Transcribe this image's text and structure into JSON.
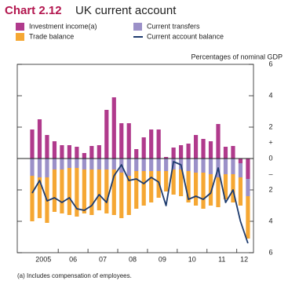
{
  "chart_data": {
    "type": "bar",
    "title_prefix": "Chart 2.12",
    "title": "UK current account",
    "unit_label": "Percentages of nominal GDP",
    "footnote": "(a) Includes compensation of employees.",
    "categories": [
      "2005",
      null,
      null,
      null,
      "06",
      null,
      null,
      null,
      "07",
      null,
      null,
      null,
      "08",
      null,
      null,
      null,
      "09",
      null,
      null,
      null,
      "10",
      null,
      null,
      null,
      "11",
      null,
      null,
      null,
      "12",
      null
    ],
    "series": [
      {
        "name": "Investment income(a)",
        "color": "#b03a8c",
        "kind": "bar",
        "values": [
          1.85,
          2.5,
          1.5,
          1.1,
          0.85,
          0.85,
          0.75,
          0.35,
          0.8,
          0.85,
          3.1,
          3.9,
          2.25,
          2.25,
          0.6,
          1.35,
          1.85,
          1.85,
          0.1,
          0.7,
          0.85,
          0.95,
          1.5,
          1.25,
          1.1,
          2.2,
          0.75,
          0.8,
          -0.3,
          -1.3
        ]
      },
      {
        "name": "Current transfers",
        "color": "#9b90c8",
        "kind": "bar",
        "values": [
          -1.1,
          -1.2,
          -1.2,
          -0.7,
          -0.7,
          -0.6,
          -0.6,
          -0.7,
          -0.7,
          -0.7,
          -0.7,
          -0.7,
          -0.9,
          -1.1,
          -0.8,
          -0.8,
          -0.8,
          -0.8,
          -0.8,
          -0.7,
          -0.7,
          -0.8,
          -0.9,
          -0.9,
          -1.0,
          -1.2,
          -1.0,
          -1.0,
          -0.9,
          -1.1
        ]
      },
      {
        "name": "Trade balance",
        "color": "#f5a733",
        "kind": "bar",
        "values": [
          -2.9,
          -2.6,
          -2.9,
          -2.7,
          -2.8,
          -3.0,
          -3.1,
          -2.8,
          -2.9,
          -2.6,
          -2.8,
          -2.9,
          -2.9,
          -2.5,
          -2.4,
          -2.2,
          -2.0,
          -1.7,
          -1.3,
          -1.6,
          -1.7,
          -2.0,
          -2.1,
          -2.3,
          -2.0,
          -1.9,
          -1.6,
          -1.8,
          -1.8,
          -2.7
        ]
      },
      {
        "name": "Current account balance",
        "color": "#1d3b6e",
        "kind": "line",
        "values": [
          -2.2,
          -1.4,
          -2.7,
          -2.5,
          -2.8,
          -2.5,
          -3.2,
          -3.3,
          -3.0,
          -2.3,
          -2.8,
          -1.1,
          -0.4,
          -1.4,
          -1.3,
          -1.6,
          -1.2,
          -1.5,
          -3.0,
          -0.2,
          -0.4,
          -2.6,
          -2.4,
          -2.6,
          -2.2,
          -0.6,
          -2.8,
          -2.0,
          -4.0,
          -5.4
        ]
      }
    ],
    "ylim": [
      -6,
      6
    ],
    "yticks": [
      6,
      4,
      2,
      0,
      {
        "value": -2,
        "label": "2"
      },
      {
        "value": -4,
        "label": "4"
      },
      {
        "value": -6,
        "label": "6"
      }
    ],
    "y_sign_labels": [
      {
        "value": 1,
        "label": "+"
      },
      {
        "value": -1,
        "label": "–"
      }
    ]
  }
}
